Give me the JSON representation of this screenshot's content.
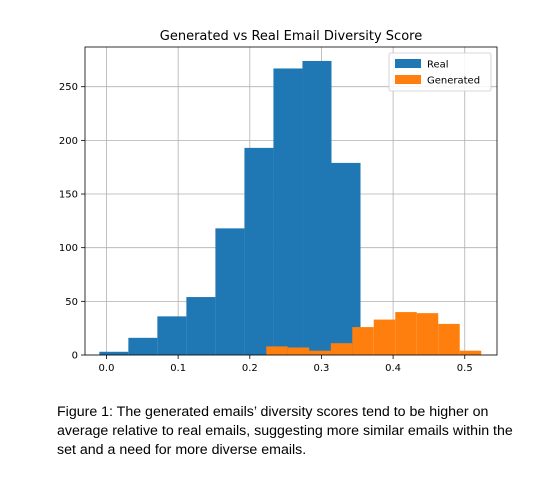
{
  "chart_data": {
    "type": "histogram",
    "title": "Generated vs Real Email Diversity Score",
    "xlabel": "",
    "ylabel": "",
    "xlim": [
      -0.03,
      0.545
    ],
    "ylim": [
      0,
      287
    ],
    "x_ticks": [
      0.0,
      0.1,
      0.2,
      0.3,
      0.4,
      0.5
    ],
    "x_tick_labels": [
      "0.0",
      "0.1",
      "0.2",
      "0.3",
      "0.4",
      "0.5"
    ],
    "y_ticks": [
      0,
      50,
      100,
      150,
      200,
      250
    ],
    "y_tick_labels": [
      "0",
      "50",
      "100",
      "150",
      "200",
      "250"
    ],
    "grid": true,
    "legend": "top-right",
    "series": [
      {
        "name": "Real",
        "color": "#1f77b4",
        "bin_edges": [
          -0.01,
          0.0305,
          0.071,
          0.1115,
          0.152,
          0.1925,
          0.233,
          0.2735,
          0.314,
          0.3545
        ],
        "counts": [
          3,
          16,
          36,
          54,
          118,
          193,
          267,
          274,
          179
        ]
      },
      {
        "name": "Generated",
        "color": "#ff7f0e",
        "bin_edges": [
          0.223,
          0.253,
          0.283,
          0.313,
          0.343,
          0.373,
          0.403,
          0.433,
          0.463,
          0.493,
          0.523
        ],
        "counts": [
          8,
          7,
          4,
          11,
          26,
          33,
          40,
          39,
          29,
          4
        ]
      }
    ]
  },
  "caption": "Figure 1: The generated emails’ diversity scores tend to be higher on average relative to real emails, suggesting more similar emails within the set and a need for more diverse emails."
}
